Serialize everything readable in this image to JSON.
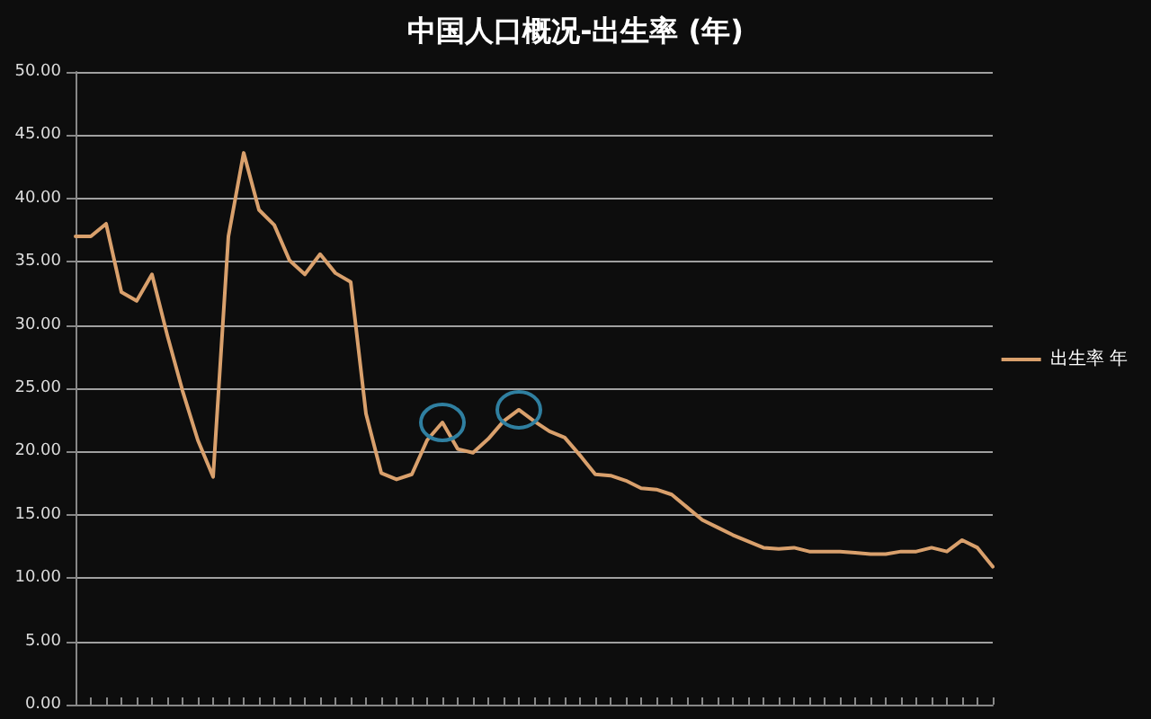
{
  "chart_data": {
    "type": "line",
    "title": "中国人口概况-出生率 (年)",
    "categories": [
      null,
      null,
      null,
      null,
      null,
      null,
      null,
      null,
      null,
      null,
      null,
      null,
      null,
      null,
      null,
      null,
      null,
      null,
      null,
      null,
      null,
      null,
      null,
      null,
      null,
      null,
      null,
      null,
      null,
      null,
      null,
      null,
      null,
      null,
      null,
      null,
      null,
      null,
      null,
      null,
      null,
      null,
      null,
      null,
      null,
      null,
      null,
      null,
      null,
      null,
      null,
      null,
      null,
      null,
      null,
      null,
      null,
      null,
      null,
      null,
      null
    ],
    "series": [
      {
        "name": "出生率 年",
        "color": "#d9a06c",
        "values": [
          37.0,
          37.0,
          38.0,
          32.6,
          31.9,
          34.0,
          29.2,
          24.8,
          20.9,
          18.0,
          37.0,
          43.6,
          39.1,
          37.9,
          35.1,
          34.0,
          35.6,
          34.1,
          33.4,
          23.0,
          18.3,
          17.8,
          18.2,
          20.9,
          22.3,
          20.2,
          19.9,
          21.0,
          22.4,
          23.3,
          22.4,
          21.6,
          21.1,
          19.7,
          18.2,
          18.1,
          17.7,
          17.1,
          17.0,
          16.6,
          15.6,
          14.6,
          14.0,
          13.4,
          12.9,
          12.4,
          12.3,
          12.4,
          12.1,
          12.1,
          12.1,
          12.0,
          11.9,
          11.9,
          12.1,
          12.1,
          12.4,
          12.1,
          13.0,
          12.4,
          10.9
        ]
      }
    ],
    "ylim": [
      0,
      50
    ],
    "yticks": [
      {
        "value": 0,
        "label": "0.00"
      },
      {
        "value": 5,
        "label": "5.00"
      },
      {
        "value": 10,
        "label": "10.00"
      },
      {
        "value": 15,
        "label": "15.00"
      },
      {
        "value": 20,
        "label": "20.00"
      },
      {
        "value": 25,
        "label": "25.00"
      },
      {
        "value": 30,
        "label": "30.00"
      },
      {
        "value": 35,
        "label": "35.00"
      },
      {
        "value": 40,
        "label": "40.00"
      },
      {
        "value": 45,
        "label": "45.00"
      },
      {
        "value": 50,
        "label": "50.00"
      }
    ],
    "grid": "y",
    "legend": "right",
    "marker": "none",
    "line_style": "solid"
  }
}
